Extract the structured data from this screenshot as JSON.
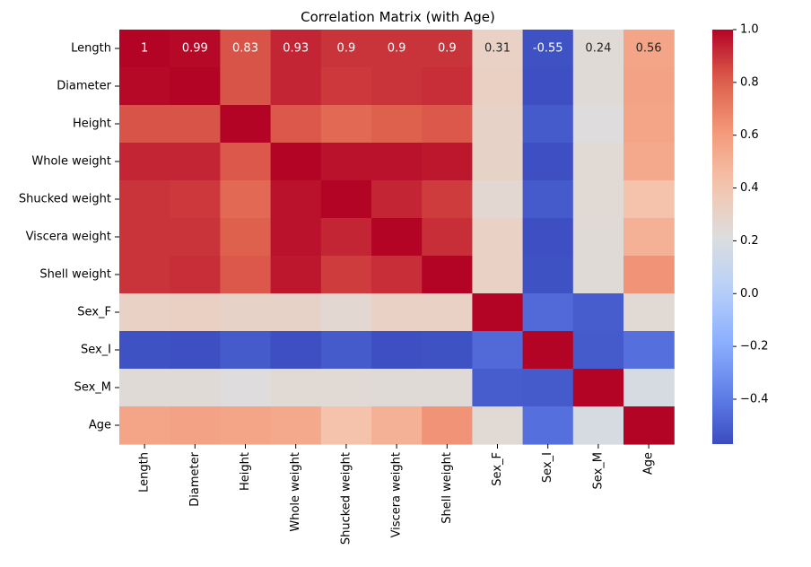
{
  "chart_data": {
    "type": "heatmap",
    "title": "Correlation Matrix (with Age)",
    "xlabel": "",
    "ylabel": "",
    "colormap": "coolwarm",
    "vmin": -0.57,
    "vmax": 1.0,
    "colorbar_ticks": [
      1.0,
      0.8,
      0.6,
      0.4,
      0.2,
      0.0,
      -0.2,
      -0.4
    ],
    "colorbar_tick_labels": [
      "1.0",
      "0.8",
      "0.6",
      "0.4",
      "0.2",
      "0.0",
      "−0.2",
      "−0.4"
    ],
    "labels": [
      "Length",
      "Diameter",
      "Height",
      "Whole weight",
      "Shucked weight",
      "Viscera weight",
      "Shell weight",
      "Sex_F",
      "Sex_I",
      "Sex_M",
      "Age"
    ],
    "annotated_rows": [
      0
    ],
    "matrix": [
      [
        1.0,
        0.99,
        0.83,
        0.93,
        0.9,
        0.9,
        0.9,
        0.31,
        -0.55,
        0.24,
        0.56
      ],
      [
        0.99,
        1.0,
        0.83,
        0.93,
        0.89,
        0.9,
        0.91,
        0.32,
        -0.56,
        0.24,
        0.57
      ],
      [
        0.83,
        0.83,
        1.0,
        0.82,
        0.77,
        0.8,
        0.82,
        0.3,
        -0.52,
        0.22,
        0.56
      ],
      [
        0.93,
        0.93,
        0.82,
        1.0,
        0.97,
        0.97,
        0.96,
        0.3,
        -0.56,
        0.25,
        0.54
      ],
      [
        0.9,
        0.89,
        0.77,
        0.97,
        1.0,
        0.93,
        0.88,
        0.26,
        -0.52,
        0.25,
        0.42
      ],
      [
        0.9,
        0.9,
        0.8,
        0.97,
        0.93,
        1.0,
        0.91,
        0.31,
        -0.56,
        0.24,
        0.5
      ],
      [
        0.9,
        0.91,
        0.82,
        0.96,
        0.88,
        0.91,
        1.0,
        0.31,
        -0.55,
        0.24,
        0.63
      ],
      [
        0.31,
        0.32,
        0.3,
        0.3,
        0.26,
        0.31,
        0.31,
        1.0,
        -0.46,
        -0.51,
        0.25
      ],
      [
        -0.55,
        -0.56,
        -0.52,
        -0.56,
        -0.52,
        -0.56,
        -0.55,
        -0.46,
        1.0,
        -0.52,
        -0.44
      ],
      [
        0.24,
        0.24,
        0.22,
        0.25,
        0.25,
        0.24,
        0.24,
        -0.51,
        -0.52,
        1.0,
        0.18
      ],
      [
        0.56,
        0.57,
        0.56,
        0.54,
        0.42,
        0.5,
        0.63,
        0.25,
        -0.44,
        0.18,
        1.0
      ]
    ],
    "grid": false,
    "legend": "colorbar-right"
  }
}
